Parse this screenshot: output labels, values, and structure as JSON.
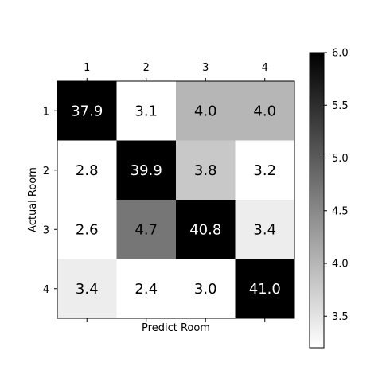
{
  "chart_data": {
    "type": "heatmap",
    "title": "",
    "xlabel": "Predict Room",
    "ylabel": "Actual Room",
    "x_categories": [
      "1",
      "2",
      "3",
      "4"
    ],
    "y_categories": [
      "1",
      "2",
      "3",
      "4"
    ],
    "values": [
      [
        37.9,
        3.1,
        4.0,
        4.0
      ],
      [
        2.8,
        39.9,
        3.8,
        3.2
      ],
      [
        2.6,
        4.7,
        40.8,
        3.4
      ],
      [
        3.4,
        2.4,
        3.0,
        41.0
      ]
    ],
    "x_axis_position": "top",
    "colormap": "grayscale (white = low, black = high)",
    "colorbar": {
      "range": [
        3.2,
        6.0
      ],
      "ticks": [
        "3.5",
        "4.0",
        "4.5",
        "5.0",
        "5.5",
        "6.0"
      ]
    },
    "colors": {
      "low": "#ffffff",
      "high": "#000000"
    }
  }
}
